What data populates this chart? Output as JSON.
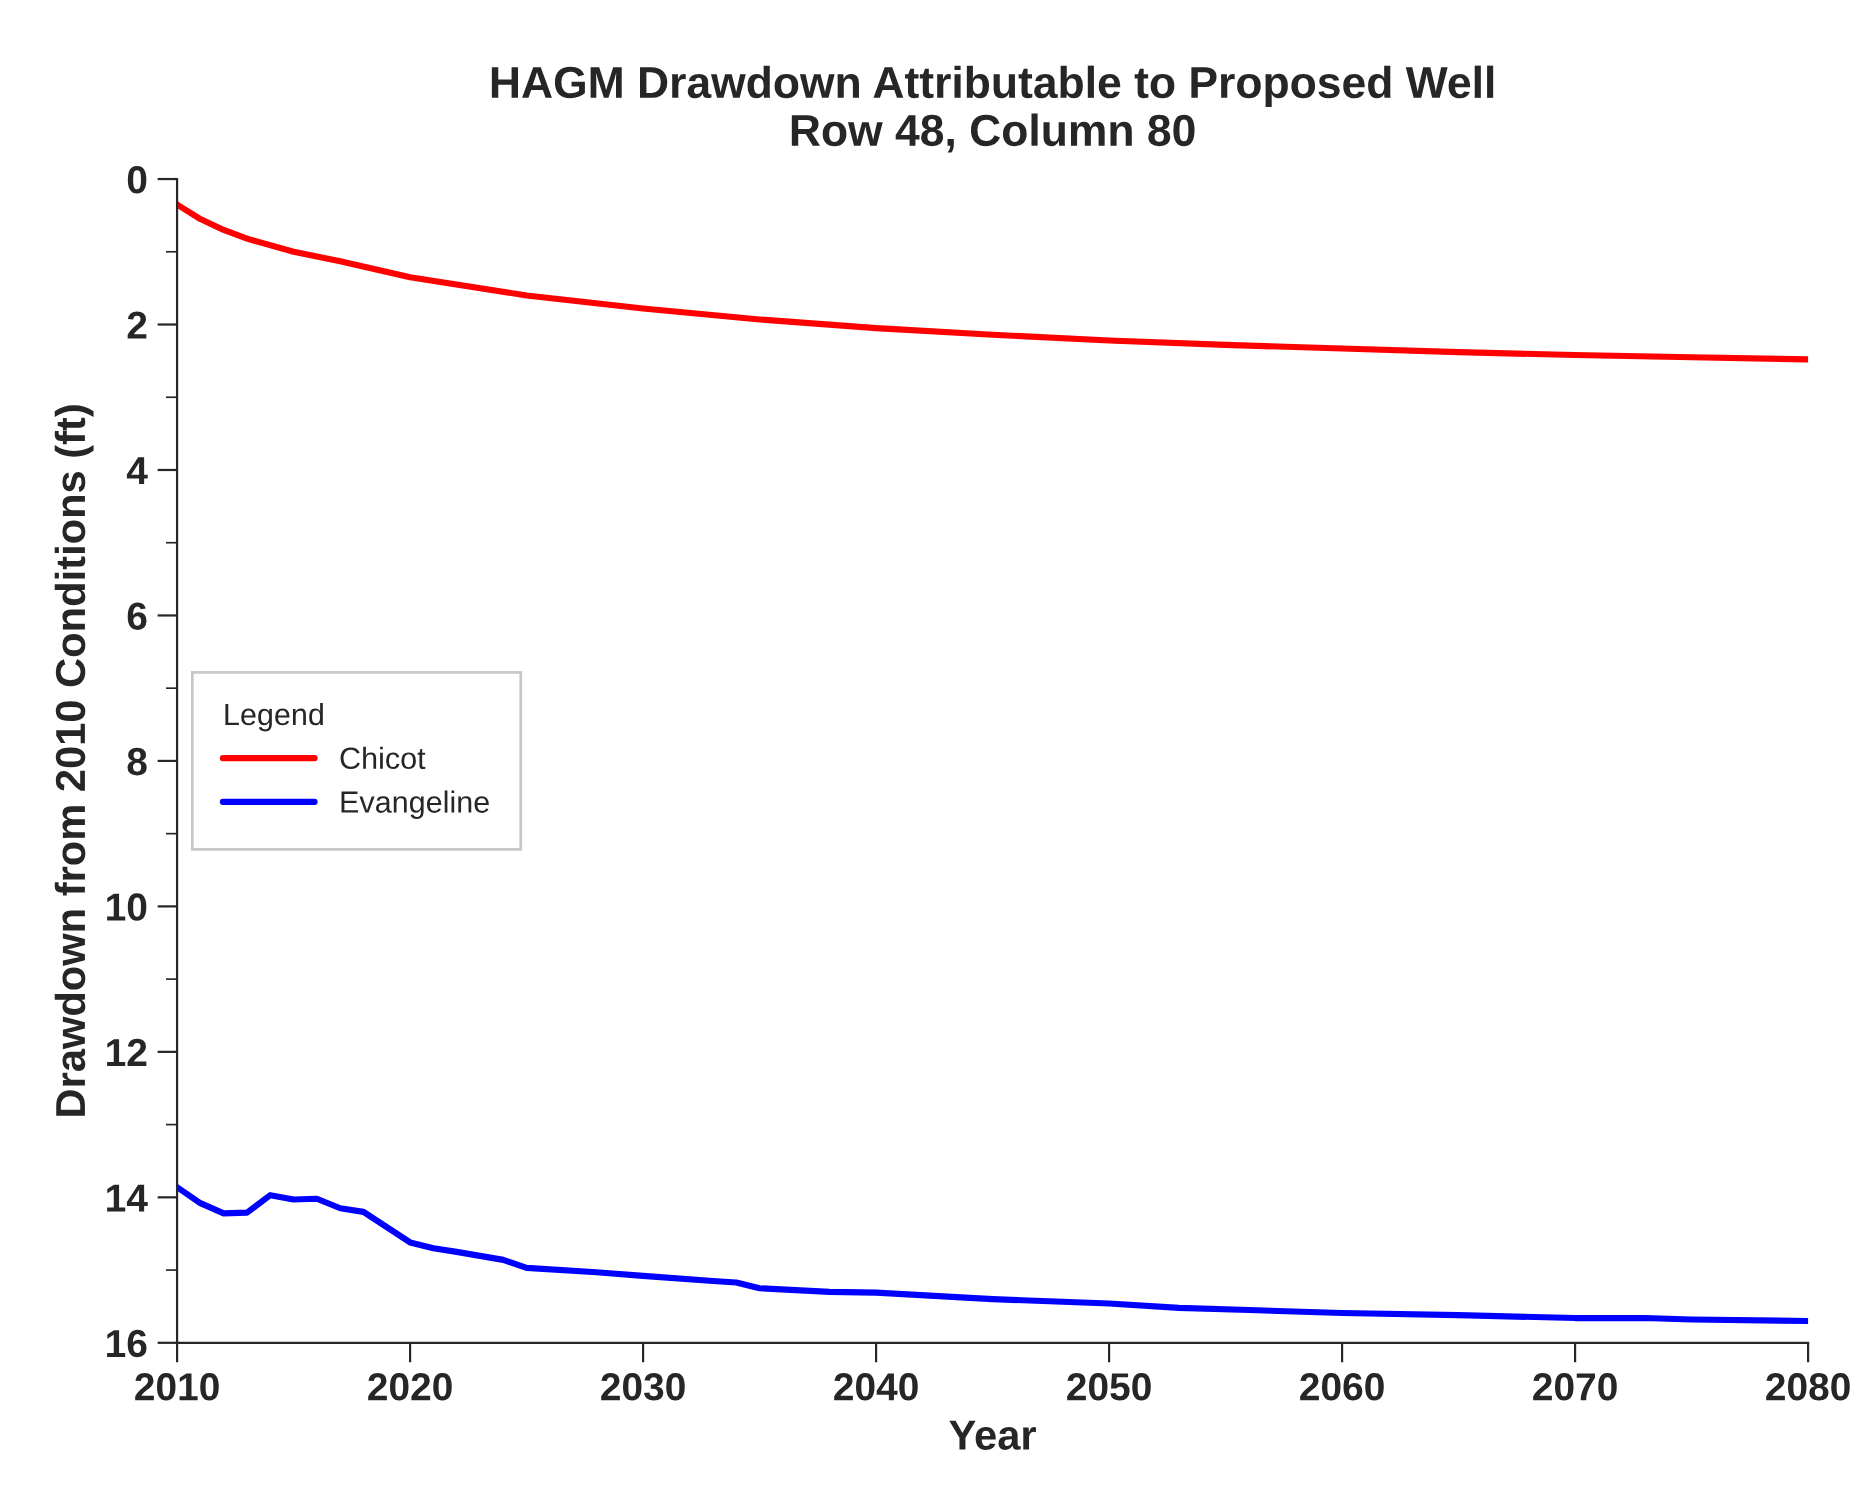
{
  "chart_data": {
    "type": "line",
    "title": "HAGM Drawdown Attributable to Proposed Well\nRow 48, Column 80",
    "xlabel": "Year",
    "ylabel": "Drawdown from 2010 Conditions (ft)",
    "legend_title": "Legend",
    "legend": "left",
    "xlim": [
      2010,
      2080
    ],
    "xticks": [
      2010,
      2020,
      2030,
      2040,
      2050,
      2060,
      2070,
      2080
    ],
    "ylim": [
      16,
      0
    ],
    "yticks": [
      0,
      2,
      4,
      6,
      8,
      10,
      12,
      14,
      16
    ],
    "grid": false,
    "marker": "none",
    "line_style": "solid",
    "series": [
      {
        "name": "Chicot",
        "color": "#ff0000",
        "x": [
          2010,
          2011,
          2012,
          2013,
          2015,
          2017,
          2020,
          2025,
          2030,
          2035,
          2040,
          2045,
          2050,
          2055,
          2060,
          2065,
          2070,
          2075,
          2080
        ],
        "values": [
          0.35,
          0.55,
          0.7,
          0.82,
          1.0,
          1.13,
          1.35,
          1.6,
          1.78,
          1.93,
          2.05,
          2.14,
          2.22,
          2.28,
          2.33,
          2.38,
          2.42,
          2.45,
          2.48
        ]
      },
      {
        "name": "Evangeline",
        "color": "#0000ff",
        "x": [
          2010,
          2011,
          2012,
          2013,
          2014,
          2015,
          2016,
          2017,
          2018,
          2020,
          2021,
          2022,
          2024,
          2025,
          2028,
          2030,
          2033,
          2034,
          2035,
          2038,
          2040,
          2045,
          2050,
          2053,
          2056,
          2060,
          2065,
          2070,
          2073,
          2075,
          2080
        ],
        "values": [
          13.86,
          14.08,
          14.22,
          14.21,
          13.97,
          14.03,
          14.02,
          14.15,
          14.2,
          14.62,
          14.7,
          14.75,
          14.86,
          14.97,
          15.03,
          15.08,
          15.15,
          15.17,
          15.25,
          15.3,
          15.31,
          15.4,
          15.46,
          15.52,
          15.55,
          15.59,
          15.62,
          15.66,
          15.66,
          15.68,
          15.7
        ]
      }
    ]
  }
}
